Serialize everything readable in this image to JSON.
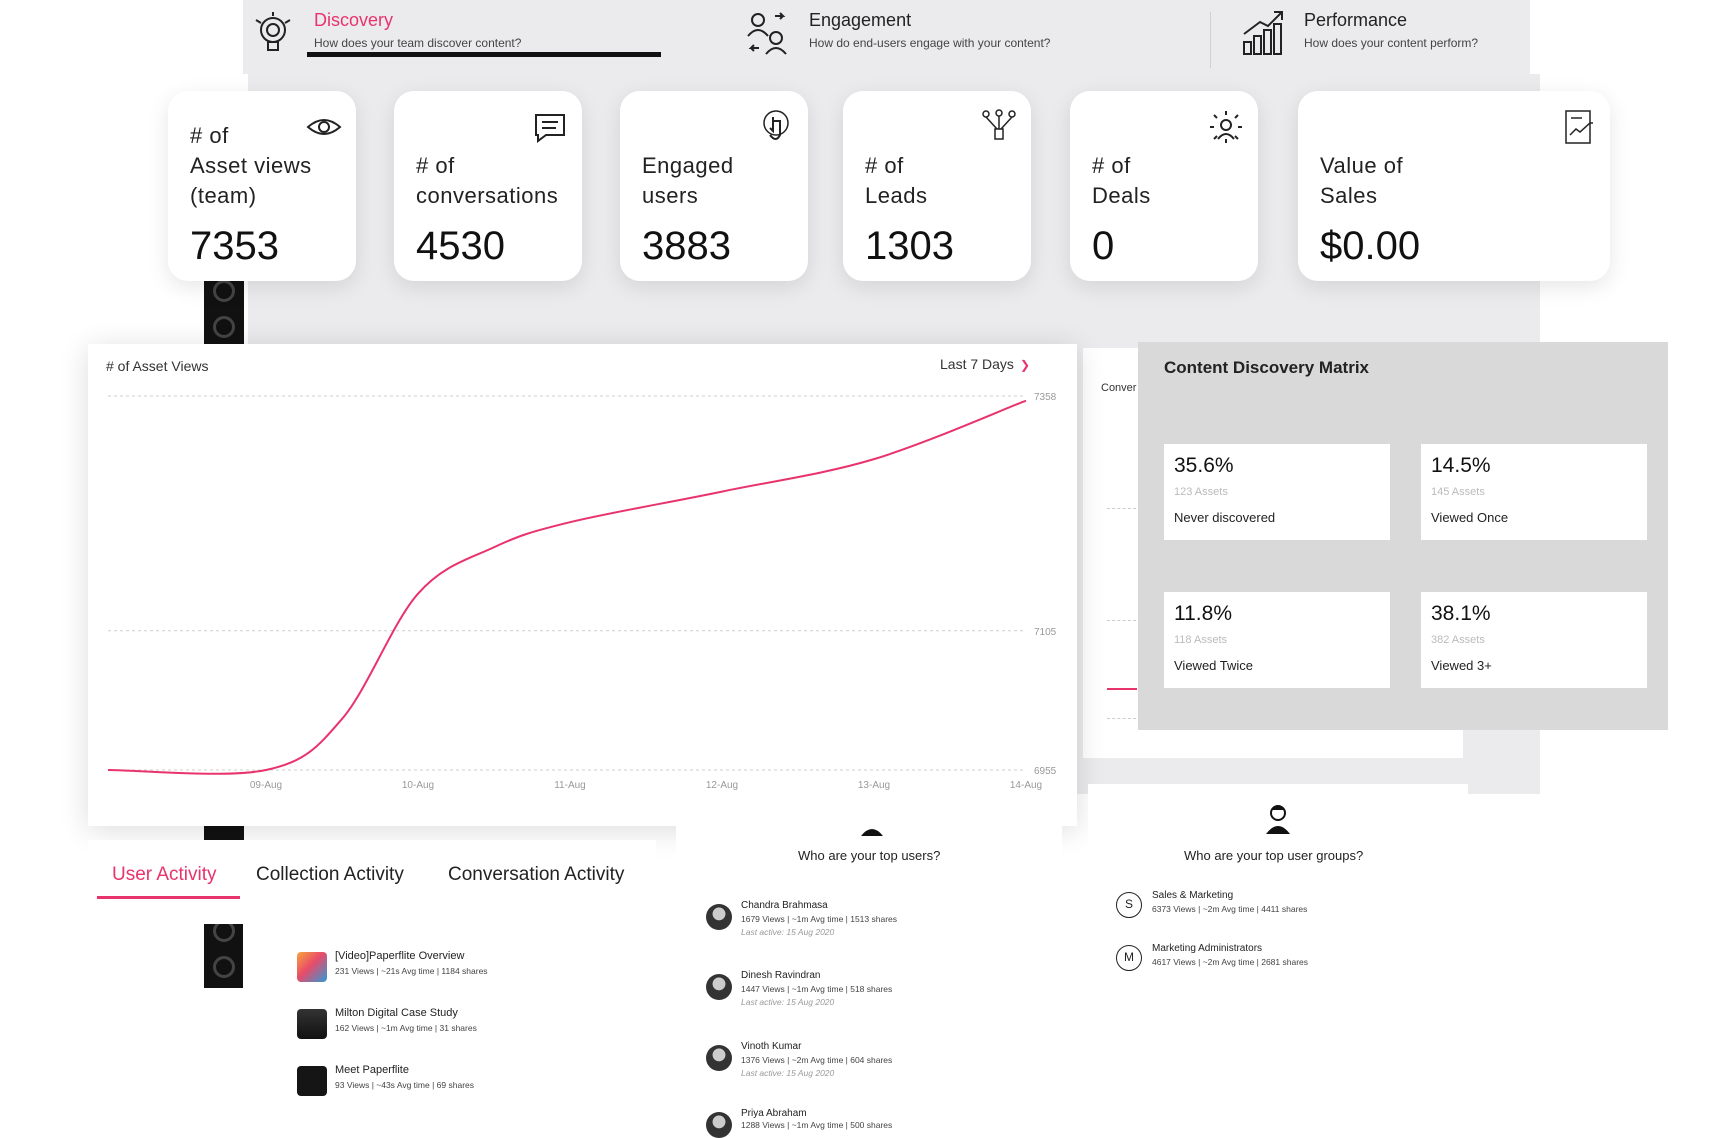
{
  "top_tabs": [
    {
      "title": "Discovery",
      "subtitle": "How does your team discover content?",
      "icon": "bulb-gear-icon"
    },
    {
      "title": "Engagement",
      "subtitle": "How do end-users engage with your content?",
      "icon": "users-exchange-icon"
    },
    {
      "title": "Performance",
      "subtitle": "How does your content perform?",
      "icon": "growth-chart-icon"
    }
  ],
  "kpis": [
    {
      "label1": "# of",
      "label2": "Asset views",
      "label3": "(team)",
      "value": "7353",
      "icon": "eye-icon"
    },
    {
      "label1": "# of",
      "label2": "conversations",
      "value": "4530",
      "icon": "chat-bubble-icon"
    },
    {
      "label1": "Engaged",
      "label2": "users",
      "value": "3883",
      "icon": "pointer-hand-icon"
    },
    {
      "label1": "# of",
      "label2": "Leads",
      "value": "1303",
      "icon": "funnel-network-icon"
    },
    {
      "label1": "# of",
      "label2": "Deals",
      "value": "0",
      "icon": "deal-target-icon"
    },
    {
      "label1": "Value of",
      "label2": "Sales",
      "value": "$0.00",
      "icon": "document-chart-icon"
    }
  ],
  "asset_chart": {
    "title": "# of Asset Views",
    "range": "Last 7 Days",
    "line_color": "#e8336d"
  },
  "chart_data": {
    "type": "line",
    "title": "# of Asset Views",
    "x": [
      "09-Aug",
      "10-Aug",
      "11-Aug",
      "12-Aug",
      "13-Aug",
      "14-Aug"
    ],
    "y_ticks": [
      "7358",
      "7105",
      "6955"
    ],
    "ylim": [
      6955,
      7358
    ],
    "series": [
      {
        "values": [
          {
            "x": 0,
            "y": 6955
          },
          {
            "x": 0.5,
            "y": 7010
          },
          {
            "x": 1,
            "y": 7145
          },
          {
            "x": 1.5,
            "y": 7195
          },
          {
            "x": 2,
            "y": 7222
          },
          {
            "x": 3,
            "y": 7255
          },
          {
            "x": 4,
            "y": 7290
          },
          {
            "x": 5,
            "y": 7353
          }
        ]
      }
    ],
    "lead": [
      {
        "x": -1,
        "y": 6955
      },
      {
        "x": 0,
        "y": 6955
      }
    ],
    "grid": true
  },
  "background": {
    "conv_label": "Conver"
  },
  "matrix": {
    "title": "Content Discovery Matrix",
    "cells": [
      {
        "pct": "35.6%",
        "count": "123 Assets",
        "label": "Never discovered"
      },
      {
        "pct": "14.5%",
        "count": "145 Assets",
        "label": "Viewed Once"
      },
      {
        "pct": "11.8%",
        "count": "118 Assets",
        "label": "Viewed Twice"
      },
      {
        "pct": "38.1%",
        "count": "382 Assets",
        "label": "Viewed 3+"
      }
    ]
  },
  "activity_tabs": [
    "User Activity",
    "Collection Activity",
    "Conversation Activity"
  ],
  "activity_items": [
    {
      "title": "[Video]Paperflite Overview",
      "meta": "231 Views  |  ~21s Avg time  |  1184 shares",
      "thumb_color": "#e94b6a"
    },
    {
      "title": "Milton Digital Case Study",
      "meta": "162 Views  |  ~1m Avg time  |  31 shares",
      "thumb_color": "#222222"
    },
    {
      "title": "Meet Paperflite",
      "meta": "93 Views  |  ~43s Avg time  |  69 shares",
      "thumb_color": "#1a1a1a"
    }
  ],
  "top_users": {
    "question": "Who are your top users?",
    "items": [
      {
        "name": "Chandra Brahmasa",
        "meta": "1679 Views  |  ~1m Avg time  |  1513 shares",
        "last": "Last active: 15 Aug 2020"
      },
      {
        "name": "Dinesh Ravindran",
        "meta": "1447 Views  |  ~1m Avg time  |  518 shares",
        "last": "Last active: 15 Aug 2020"
      },
      {
        "name": "Vinoth Kumar",
        "meta": "1376 Views  |  ~2m Avg time  |  604 shares",
        "last": "Last active: 15 Aug 2020"
      },
      {
        "name": "Priya Abraham",
        "meta": "1288 Views  |  ~1m Avg time  |  500 shares",
        "last": ""
      }
    ]
  },
  "top_groups": {
    "question": "Who are your top user groups?",
    "items": [
      {
        "letter": "S",
        "name": "Sales & Marketing",
        "meta": "6373 Views  |  ~2m Avg time  |  4411 shares"
      },
      {
        "letter": "M",
        "name": "Marketing Administrators",
        "meta": "4617 Views  |  ~2m Avg time  |  2681 shares"
      }
    ]
  }
}
